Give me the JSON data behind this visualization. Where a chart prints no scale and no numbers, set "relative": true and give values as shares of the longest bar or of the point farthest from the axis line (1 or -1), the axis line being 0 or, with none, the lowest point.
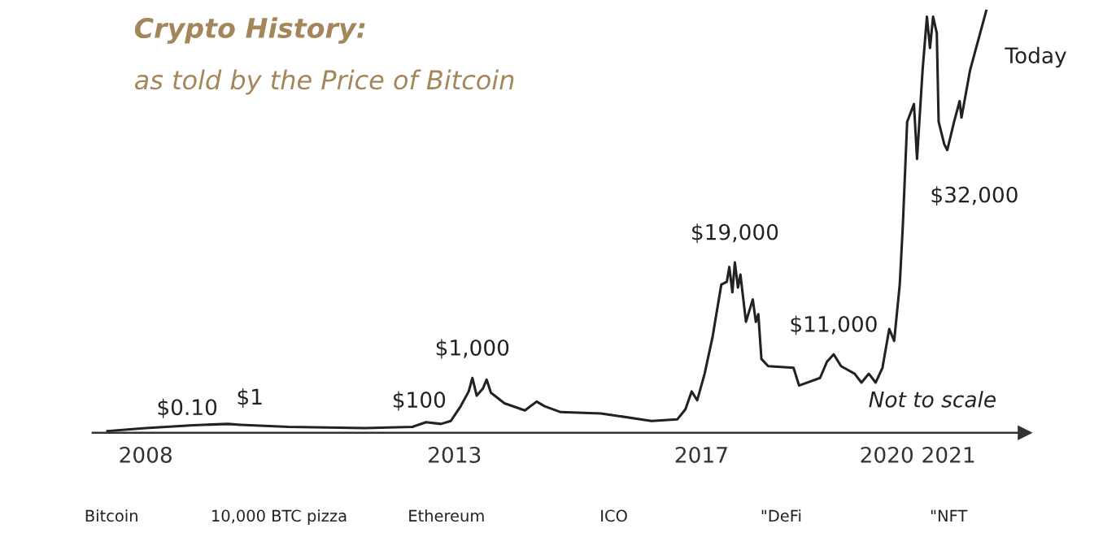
{
  "chart_data": {
    "type": "line",
    "title": "Crypto History:",
    "subtitle": "as told by the Price of Bitcoin",
    "relative": true,
    "x": [
      2007.38,
      2008.0,
      2008.77,
      2009.33,
      2009.54,
      2010.31,
      2011.55,
      2012.32,
      2012.54,
      2012.78,
      2012.94,
      2013.1,
      2013.23,
      2013.29,
      2013.36,
      2013.46,
      2013.52,
      2013.59,
      2013.81,
      2014.14,
      2014.33,
      2014.46,
      2014.72,
      2015.37,
      2016.19,
      2016.61,
      2016.74,
      2016.84,
      2016.93,
      2017.05,
      2017.18,
      2017.32,
      2017.41,
      2017.45,
      2017.5,
      2017.54,
      2017.59,
      2017.63,
      2017.72,
      2017.83,
      2017.88,
      2017.92,
      2017.97,
      2018.08,
      2018.49,
      2018.58,
      2018.92,
      2019.03,
      2019.14,
      2019.26,
      2019.48,
      2019.59,
      2019.71,
      2019.82,
      2019.93,
      2020.04,
      2020.12,
      2020.21,
      2020.26,
      2020.33,
      2020.44,
      2020.49,
      2020.58,
      2020.65,
      2020.7,
      2020.75,
      2020.81,
      2020.84,
      2020.93,
      2020.98,
      2021.09,
      2021.18,
      2021.21,
      2021.35,
      2021.61
    ],
    "series": [
      {
        "color": "#222222",
        "values": [
          0.004,
          0.011,
          0.018,
          0.021,
          0.019,
          0.014,
          0.011,
          0.014,
          0.025,
          0.021,
          0.028,
          0.063,
          0.098,
          0.13,
          0.088,
          0.105,
          0.126,
          0.095,
          0.07,
          0.053,
          0.074,
          0.063,
          0.049,
          0.046,
          0.028,
          0.032,
          0.056,
          0.098,
          0.077,
          0.14,
          0.228,
          0.351,
          0.358,
          0.393,
          0.333,
          0.404,
          0.344,
          0.375,
          0.263,
          0.316,
          0.263,
          0.281,
          0.175,
          0.158,
          0.154,
          0.112,
          0.13,
          0.168,
          0.186,
          0.158,
          0.14,
          0.119,
          0.14,
          0.119,
          0.154,
          0.246,
          0.218,
          0.351,
          0.491,
          0.737,
          0.779,
          0.649,
          0.86,
          0.986,
          0.912,
          0.986,
          0.947,
          0.737,
          0.684,
          0.67,
          0.737,
          0.786,
          0.747,
          0.86,
          1.0
        ]
      }
    ],
    "xlim": [
      2007.14,
      2022.23
    ],
    "xticks": [
      2008,
      2013,
      2017,
      2020,
      2021
    ],
    "grid": false,
    "marker": "none",
    "line_style": "solid",
    "annotations": [
      {
        "text": "$0.10",
        "x": 2009.33,
        "y": 0.021
      },
      {
        "text": "$1",
        "x": 2009.54,
        "y": 0.019
      },
      {
        "text": "$100",
        "x": 2012.94,
        "y": 0.028
      },
      {
        "text": "$1,000",
        "x": 2013.29,
        "y": 0.13
      },
      {
        "text": "$19,000",
        "x": 2017.54,
        "y": 0.404
      },
      {
        "text": "$11,000",
        "x": 2019.14,
        "y": 0.186
      },
      {
        "text": "$32,000",
        "x": 2020.98,
        "y": 0.67
      },
      {
        "text": "Today",
        "x": 2021.61,
        "y": 1.0
      },
      "Not to scale",
      "Bitcoin",
      "10,000 BTC pizza",
      "Ethereum",
      "ICO",
      "\"DeFi",
      "\"NFT"
    ]
  }
}
